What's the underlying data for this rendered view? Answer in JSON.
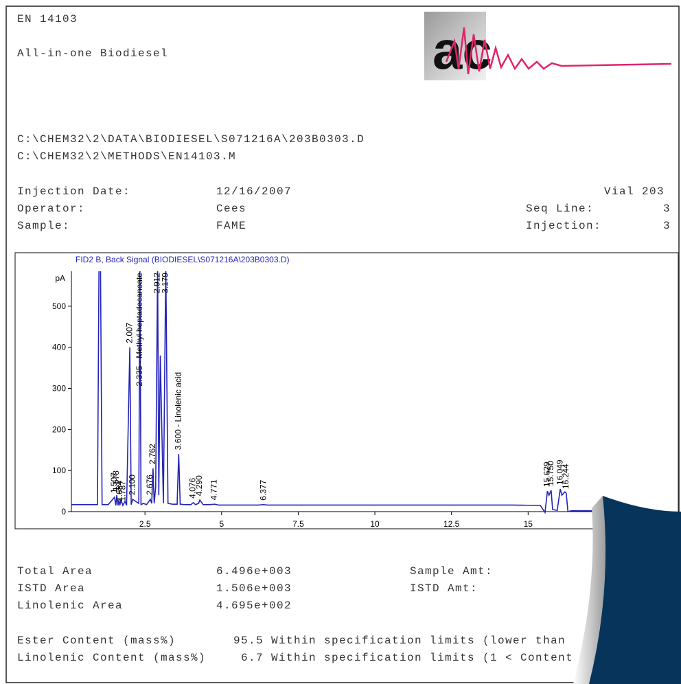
{
  "header": {
    "method": "EN 14103",
    "title": "All-in-one Biodiesel",
    "logo": "ac"
  },
  "files": [
    "C:\\CHEM32\\2\\DATA\\BIODIESEL\\S071216A\\203B0303.D",
    "C:\\CHEM32\\2\\METHODS\\EN14103.M"
  ],
  "injection": {
    "rows": [
      [
        "Injection Date:",
        "12/16/2007",
        "Vial 203"
      ],
      [
        "Operator:",
        "Cees",
        "Seq Line:",
        "3"
      ],
      [
        "Sample:",
        "FAME",
        "Injection:",
        "3"
      ]
    ]
  },
  "chart_data": {
    "type": "line",
    "title": "FID2 B, Back Signal (BIODIESEL\\S071216A\\203B0303.D)",
    "y_label": "pA",
    "xlim": [
      0.1,
      17.3
    ],
    "ylim": [
      0,
      585
    ],
    "xticks": [
      2.5,
      5,
      7.5,
      10,
      12.5,
      15
    ],
    "yticks": [
      0,
      100,
      200,
      300,
      400,
      500
    ],
    "series": [
      {
        "name": "FID2 B",
        "color": "#2323b8",
        "x": [
          0.1,
          0.95,
          1.0,
          1.05,
          1.1,
          1.3,
          1.507,
          1.55,
          1.578,
          1.62,
          1.65,
          1.68,
          1.72,
          1.78,
          1.85,
          1.9,
          2.007,
          2.05,
          2.1,
          2.3,
          2.335,
          2.37,
          2.45,
          2.55,
          2.676,
          2.72,
          2.762,
          2.8,
          2.85,
          2.912,
          2.95,
          3.0,
          3.1,
          3.179,
          3.25,
          3.4,
          3.55,
          3.6,
          3.65,
          3.8,
          4.0,
          4.076,
          4.15,
          4.25,
          4.29,
          4.4,
          4.6,
          4.771,
          4.9,
          6.2,
          6.377,
          6.5,
          10.0,
          14.5,
          15.4,
          15.55,
          15.629,
          15.68,
          15.75,
          15.8,
          15.95,
          16.049,
          16.1,
          16.2,
          16.244,
          16.3,
          16.4,
          17.3
        ],
        "values": [
          17,
          17,
          600,
          600,
          17,
          17,
          35,
          15,
          40,
          15,
          30,
          15,
          28,
          15,
          25,
          15,
          400,
          17,
          30,
          20,
          600,
          17,
          20,
          17,
          30,
          20,
          105,
          20,
          60,
          600,
          40,
          380,
          20,
          600,
          20,
          18,
          18,
          140,
          18,
          17,
          17,
          22,
          17,
          20,
          28,
          17,
          17,
          18,
          16,
          16,
          17,
          16,
          16,
          16,
          15,
          -2,
          50,
          40,
          52,
          5,
          3,
          55,
          40,
          48,
          45,
          0,
          2,
          2
        ]
      }
    ],
    "annotations": [
      {
        "x": 1.507,
        "label": "1.507"
      },
      {
        "x": 1.578,
        "label": "1.578"
      },
      {
        "x": 1.684,
        "label": "1.684"
      },
      {
        "x": 1.787,
        "label": "1.787"
      },
      {
        "x": 2.1,
        "label": "2.100"
      },
      {
        "x": 2.007,
        "label": "2.007"
      },
      {
        "x": 2.335,
        "label": "2.335 - Methyl heptadecanoate"
      },
      {
        "x": 2.676,
        "label": "2.676"
      },
      {
        "x": 2.762,
        "label": "2.762"
      },
      {
        "x": 2.912,
        "label": "2.912"
      },
      {
        "x": 3.179,
        "label": "3.179"
      },
      {
        "x": 3.6,
        "label": "3.600 - Linolenic acid"
      },
      {
        "x": 4.076,
        "label": "4.076"
      },
      {
        "x": 4.29,
        "label": "4.290"
      },
      {
        "x": 4.771,
        "label": "4.771"
      },
      {
        "x": 6.377,
        "label": "6.377"
      },
      {
        "x": 15.629,
        "label": "15.629"
      },
      {
        "x": 15.75,
        "label": "15.750"
      },
      {
        "x": 16.049,
        "label": "16.049"
      },
      {
        "x": 16.244,
        "label": "16.244"
      }
    ]
  },
  "results": {
    "rows": [
      [
        "Total Area",
        "6.496e+003",
        "Sample Amt:"
      ],
      [
        "ISTD Area",
        "1.506e+003",
        "ISTD Amt:"
      ],
      [
        "Linolenic Area",
        "4.695e+002"
      ]
    ],
    "content": [
      [
        "Ester Content (mass%)",
        "95.5 Within specification limits (lower than"
      ],
      [
        "Linolenic Content (mass%)",
        "6.7 Within specification limits (1 < Content"
      ]
    ]
  }
}
